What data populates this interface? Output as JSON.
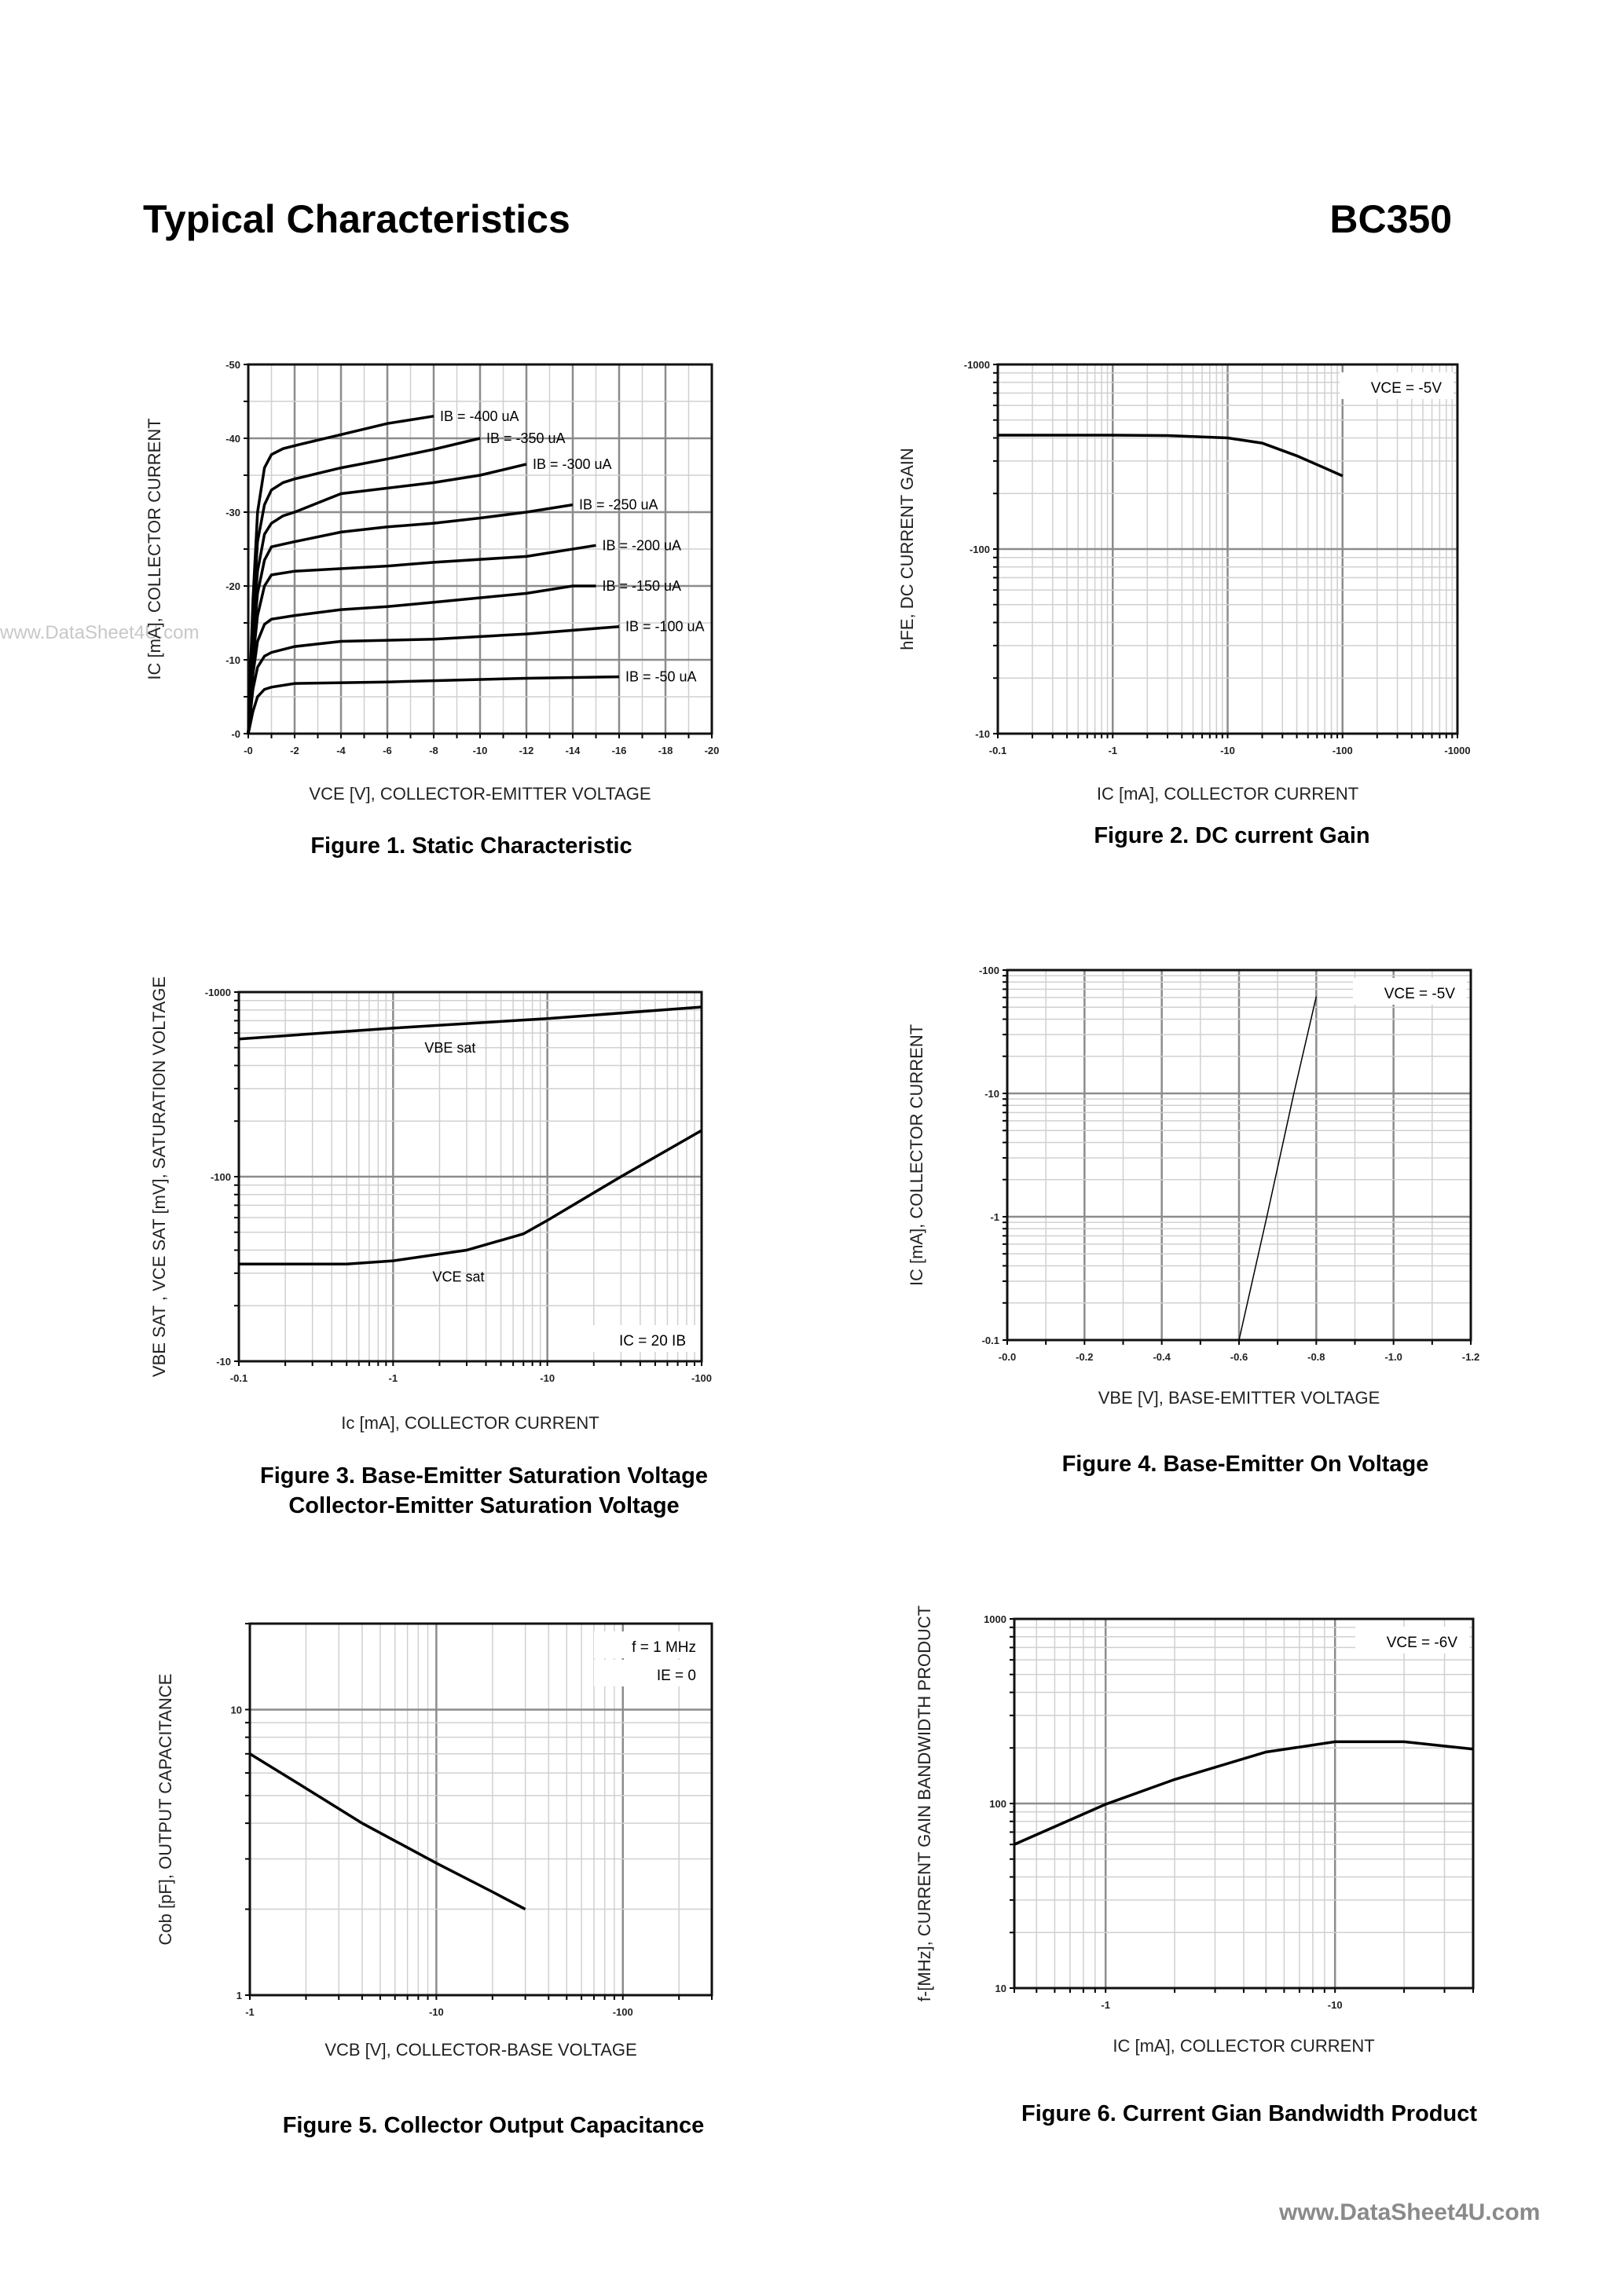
{
  "header": {
    "title": "Typical Characteristics",
    "part_number": "BC350"
  },
  "watermarks": {
    "left": "www.DataSheet4U.com",
    "footer": "www.DataSheet4U.com"
  },
  "chart_data": [
    {
      "id": "fig1",
      "type": "line",
      "caption": [
        "Figure 1. Static Characteristic"
      ],
      "xlabel": "VCE [V], COLLECTOR-EMITTER VOLTAGE",
      "ylabel": "IC [mA], COLLECTOR CURRENT",
      "xscale": "linear",
      "yscale": "linear",
      "xlim": [
        0,
        -20
      ],
      "ylim": [
        0,
        -50
      ],
      "grid": true,
      "xticks": [
        "-0",
        "-2",
        "-4",
        "-6",
        "-8",
        "-10",
        "-12",
        "-14",
        "-16",
        "-18",
        "-20"
      ],
      "yticks": [
        "-0",
        "-10",
        "-20",
        "-30",
        "-40",
        "-50"
      ],
      "annotations": [],
      "series": [
        {
          "name": "IB = -400 uA",
          "x": [
            0,
            -0.2,
            -0.4,
            -0.7,
            -1,
            -1.5,
            -2,
            -4,
            -6,
            -8
          ],
          "y": [
            0,
            -18,
            -30,
            -36,
            -37.8,
            -38.6,
            -39,
            -40.5,
            -42,
            -43
          ]
        },
        {
          "name": "IB = -350 uA",
          "x": [
            0,
            -0.2,
            -0.4,
            -0.7,
            -1,
            -1.5,
            -2,
            -4,
            -6,
            -8,
            -10
          ],
          "y": [
            0,
            -16,
            -26,
            -31,
            -33,
            -34,
            -34.5,
            -36,
            -37.2,
            -38.5,
            -40
          ]
        },
        {
          "name": "IB = -300 uA",
          "x": [
            0,
            -0.2,
            -0.4,
            -0.7,
            -1,
            -1.5,
            -2,
            -4,
            -8,
            -10,
            -12
          ],
          "y": [
            0,
            -14,
            -22,
            -27,
            -28.5,
            -29.5,
            -30,
            -32.5,
            -34,
            -35,
            -36.5
          ]
        },
        {
          "name": "IB = -250 uA",
          "x": [
            0,
            -0.2,
            -0.4,
            -0.7,
            -1,
            -2,
            -4,
            -6,
            -8,
            -10,
            -12,
            -14
          ],
          "y": [
            0,
            -12,
            -19,
            -23.5,
            -25.3,
            -26,
            -27.3,
            -28,
            -28.5,
            -29.2,
            -30,
            -31
          ]
        },
        {
          "name": "IB = -200 uA",
          "x": [
            0,
            -0.2,
            -0.4,
            -0.7,
            -1,
            -2,
            -6,
            -8,
            -12,
            -15
          ],
          "y": [
            0,
            -10,
            -16,
            -20,
            -21.5,
            -22,
            -22.7,
            -23.2,
            -24,
            -25.5
          ]
        },
        {
          "name": "IB = -150 uA",
          "x": [
            0,
            -0.2,
            -0.4,
            -0.7,
            -1,
            -2,
            -4,
            -6,
            -8,
            -12,
            -14,
            -15
          ],
          "y": [
            0,
            -8,
            -12.5,
            -14.8,
            -15.5,
            -16,
            -16.8,
            -17.2,
            -17.8,
            -19,
            -20,
            -20
          ]
        },
        {
          "name": "IB = -100 uA",
          "x": [
            0,
            -0.2,
            -0.4,
            -0.7,
            -1,
            -2,
            -4,
            -8,
            -12,
            -16
          ],
          "y": [
            0,
            -6,
            -9,
            -10.5,
            -11,
            -11.8,
            -12.5,
            -12.8,
            -13.5,
            -14.5
          ]
        },
        {
          "name": "IB = -50 uA",
          "x": [
            0,
            -0.2,
            -0.4,
            -0.7,
            -1,
            -2,
            -6,
            -12,
            -16
          ],
          "y": [
            0,
            -3,
            -5,
            -6,
            -6.3,
            -6.8,
            -7,
            -7.5,
            -7.7
          ]
        }
      ]
    },
    {
      "id": "fig2",
      "type": "line",
      "caption": [
        "Figure 2. DC current Gain"
      ],
      "xlabel": "IC [mA], COLLECTOR CURRENT",
      "ylabel": "hFE, DC CURRENT GAIN",
      "xscale": "log",
      "yscale": "log",
      "xlim": [
        -0.1,
        -1000
      ],
      "ylim": [
        -10,
        -1000
      ],
      "grid": true,
      "xticks": [
        "-0.1",
        "-1",
        "-10",
        "-100",
        "-1000"
      ],
      "yticks": [
        "-10",
        "-100",
        "-1000"
      ],
      "annotations": [
        "VCE = -5V"
      ],
      "series": [
        {
          "x": [
            -0.1,
            -1,
            -3,
            -10,
            -20,
            -40,
            -70,
            -100
          ],
          "y": [
            -414,
            -414,
            -412,
            -400,
            -375,
            -320,
            -275,
            -249
          ]
        }
      ]
    },
    {
      "id": "fig3",
      "type": "line",
      "caption": [
        "Figure 3. Base-Emitter Saturation Voltage",
        "Collector-Emitter Saturation Voltage"
      ],
      "xlabel": "Ic [mA], COLLECTOR CURRENT",
      "ylabel": "VBE SAT , VCE SAT [mV], SATURATION VOLTAGE",
      "xscale": "log",
      "yscale": "log",
      "xlim": [
        -0.1,
        -100
      ],
      "ylim": [
        -10,
        -1000
      ],
      "grid": true,
      "xticks": [
        "-0.1",
        "-1",
        "-10",
        "-100"
      ],
      "yticks": [
        "-10",
        "-100",
        "-1000"
      ],
      "annotations": [
        "IC = 20 IB"
      ],
      "series": [
        {
          "name": "VBE sat",
          "x": [
            -0.1,
            -1,
            -10,
            -100
          ],
          "y": [
            -557,
            -638,
            -719,
            -830
          ]
        },
        {
          "name": "VCE sat",
          "x": [
            -0.1,
            -0.5,
            -1,
            -3,
            -7,
            -10,
            -30,
            -100
          ],
          "y": [
            -33.6,
            -33.6,
            -35,
            -40,
            -49,
            -58,
            -100,
            -178
          ]
        }
      ]
    },
    {
      "id": "fig4",
      "type": "line",
      "caption": [
        "Figure 4. Base-Emitter On Voltage"
      ],
      "xlabel": "VBE [V], BASE-EMITTER VOLTAGE",
      "ylabel": "IC [mA], COLLECTOR CURRENT",
      "xscale": "linear",
      "yscale": "log",
      "xlim": [
        0,
        -1.2
      ],
      "ylim": [
        -0.1,
        -100
      ],
      "grid": true,
      "xticks": [
        "-0.0",
        "-0.2",
        "-0.4",
        "-0.6",
        "-0.8",
        "-1.0",
        "-1.2"
      ],
      "yticks": [
        "-0.1",
        "-1",
        "-10",
        "-100"
      ],
      "annotations": [
        "VCE = -5V"
      ],
      "series": [
        {
          "x": [
            -0.6,
            -0.672,
            -0.742,
            -0.8
          ],
          "y": [
            -0.1,
            -1,
            -10,
            -61
          ]
        }
      ]
    },
    {
      "id": "fig5",
      "type": "line",
      "caption": [
        "Figure 5. Collector Output Capacitance"
      ],
      "xlabel": "VCB [V], COLLECTOR-BASE VOLTAGE",
      "ylabel": "Cob [pF], OUTPUT CAPACITANCE",
      "xscale": "log",
      "yscale": "log",
      "xlim": [
        -1,
        -300
      ],
      "ylim": [
        1,
        20
      ],
      "grid": true,
      "xticks": [
        "-1",
        "-10",
        "-100"
      ],
      "yticks": [
        "1",
        "10"
      ],
      "annotations": [
        "f = 1 MHz",
        "IE = 0"
      ],
      "series": [
        {
          "x": [
            -1,
            -2,
            -4,
            -10,
            -20,
            -30
          ],
          "y": [
            7,
            5.3,
            4,
            2.9,
            2.3,
            2
          ]
        }
      ]
    },
    {
      "id": "fig6",
      "type": "line",
      "caption": [
        "Figure 6. Current Gian Bandwidth Product"
      ],
      "xlabel": "IC [mA], COLLECTOR CURRENT",
      "ylabel": "f-[MHz], CURRENT GAIN BANDWIDTH PRODUCT",
      "xscale": "log",
      "yscale": "log",
      "xlim": [
        -0.4,
        -40
      ],
      "ylim": [
        10,
        1000
      ],
      "grid": true,
      "xticks": [
        "-1",
        "-10"
      ],
      "yticks": [
        "10",
        "100",
        "1000"
      ],
      "annotations": [
        "VCE = -6V"
      ],
      "series": [
        {
          "x": [
            -0.4,
            -1,
            -2,
            -5,
            -10,
            -20,
            -40
          ],
          "y": [
            60,
            99,
            135,
            190,
            216,
            216,
            197
          ]
        }
      ]
    }
  ]
}
